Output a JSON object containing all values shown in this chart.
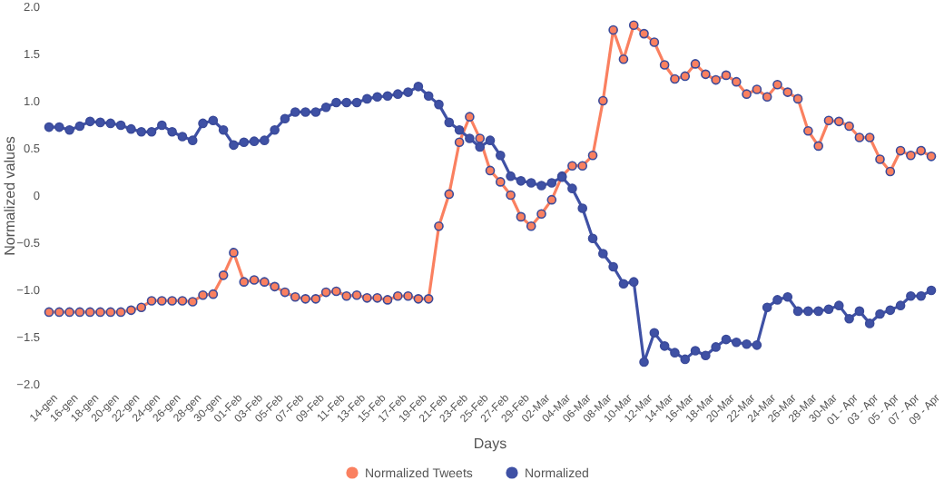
{
  "chart_data": {
    "type": "line",
    "xlabel": "Days",
    "ylabel": "Normalized values",
    "categories": [
      "14-gen",
      null,
      "16-gen",
      null,
      "18-gen",
      null,
      "20-gen",
      null,
      "22-gen",
      null,
      "24-gen",
      null,
      "26-gen",
      null,
      "28-gen",
      null,
      "30-gen",
      null,
      "01-Feb",
      null,
      "03-Feb",
      null,
      "05-Feb",
      null,
      "07-Feb",
      null,
      "09-Feb",
      null,
      "11-Feb",
      null,
      "13-Feb",
      null,
      "15-Feb",
      null,
      "17-Feb",
      null,
      "19-Feb",
      null,
      "21-Feb",
      null,
      "23-Feb",
      null,
      "25-Feb",
      null,
      "27-Feb",
      null,
      "29-Feb",
      null,
      "02-Mar",
      null,
      "04-Mar",
      null,
      "06-Mar",
      null,
      "08-Mar",
      null,
      "10-Mar",
      null,
      "12-Mar",
      null,
      "14-Mar",
      null,
      "16-Mar",
      null,
      "18-Mar",
      null,
      "20-Mar",
      null,
      "22-Mar",
      null,
      "24-Mar",
      null,
      "26-Mar",
      null,
      "28-Mar",
      null,
      "30-Mar",
      null,
      "01 - Apr",
      null,
      "03 - Apr",
      null,
      "05 - Apr",
      null,
      "07 - Apr",
      null,
      "09 - Apr"
    ],
    "series": [
      {
        "name": "Normalized Tweets",
        "color": "#fa8060",
        "values": [
          -1.23,
          -1.23,
          -1.23,
          -1.23,
          -1.23,
          -1.23,
          -1.23,
          -1.23,
          -1.21,
          -1.18,
          -1.11,
          -1.11,
          -1.11,
          -1.11,
          -1.12,
          -1.05,
          -1.04,
          -0.84,
          -0.6,
          -0.91,
          -0.89,
          -0.91,
          -0.96,
          -1.02,
          -1.07,
          -1.09,
          -1.09,
          -1.02,
          -1.01,
          -1.06,
          -1.05,
          -1.08,
          -1.08,
          -1.1,
          -1.06,
          -1.06,
          -1.09,
          -1.09,
          -0.32,
          0.02,
          0.57,
          0.84,
          0.61,
          0.27,
          0.15,
          0.01,
          -0.22,
          -0.32,
          -0.19,
          -0.04,
          0.21,
          0.32,
          0.32,
          0.43,
          1.01,
          1.76,
          1.45,
          1.81,
          1.72,
          1.63,
          1.39,
          1.24,
          1.27,
          1.4,
          1.29,
          1.23,
          1.28,
          1.21,
          1.08,
          1.13,
          1.05,
          1.18,
          1.1,
          1.03,
          0.69,
          0.53,
          0.8,
          0.79,
          0.74,
          0.62,
          0.62,
          0.39,
          0.26,
          0.48,
          0.43,
          0.48,
          0.42
        ]
      },
      {
        "name": "Normalized",
        "color": "#3f51a5",
        "values": [
          0.73,
          0.73,
          0.7,
          0.74,
          0.79,
          0.78,
          0.77,
          0.75,
          0.71,
          0.68,
          0.68,
          0.75,
          0.68,
          0.63,
          0.59,
          0.77,
          0.8,
          0.7,
          0.54,
          0.57,
          0.58,
          0.59,
          0.7,
          0.82,
          0.89,
          0.89,
          0.89,
          0.94,
          0.99,
          0.99,
          0.99,
          1.03,
          1.05,
          1.06,
          1.08,
          1.1,
          1.16,
          1.06,
          0.97,
          0.78,
          0.7,
          0.61,
          0.52,
          0.59,
          0.43,
          0.21,
          0.16,
          0.14,
          0.11,
          0.14,
          0.2,
          0.08,
          -0.13,
          -0.45,
          -0.61,
          -0.75,
          -0.93,
          -0.91,
          -1.76,
          -1.45,
          -1.59,
          -1.66,
          -1.73,
          -1.64,
          -1.69,
          -1.6,
          -1.52,
          -1.55,
          -1.57,
          -1.58,
          -1.18,
          -1.1,
          -1.07,
          -1.22,
          -1.22,
          -1.22,
          -1.2,
          -1.16,
          -1.3,
          -1.22,
          -1.35,
          -1.25,
          -1.21,
          -1.16,
          -1.06,
          -1.06,
          -1.0
        ]
      }
    ],
    "ylim": [
      -2,
      2
    ],
    "yticks": [
      {
        "value": 2,
        "label": "2.0"
      },
      {
        "value": 1.5,
        "label": "1.5"
      },
      {
        "value": 1,
        "label": "1.0"
      },
      {
        "value": 0.5,
        "label": "0.5"
      },
      0,
      {
        "value": -0.5,
        "label": "−0.5"
      },
      {
        "value": -1,
        "label": "−1.0"
      },
      {
        "value": -1.5,
        "label": "−1.5"
      },
      {
        "value": -2,
        "label": "−2.0"
      }
    ],
    "grid": false,
    "legend": "bottom",
    "marker": "circle",
    "line_style": "solid"
  }
}
